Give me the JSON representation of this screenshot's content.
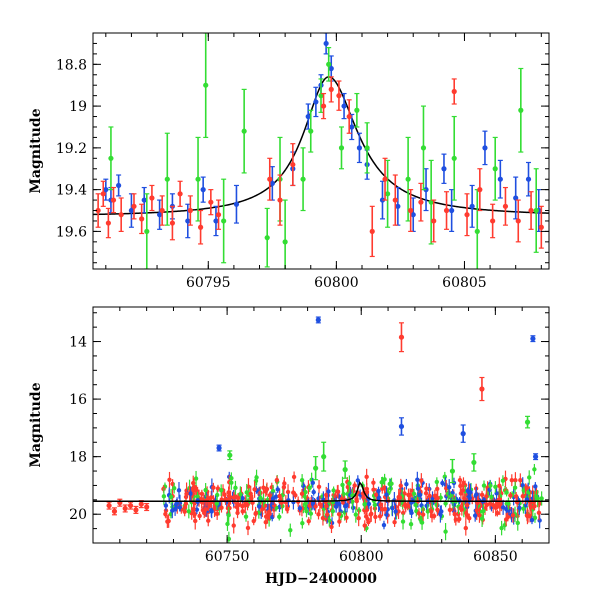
{
  "chart_data": [
    {
      "type": "scatter",
      "title": "",
      "xlabel": "",
      "ylabel": "Magnitude",
      "xlim": [
        60790.5,
        60808.3
      ],
      "ylim": [
        19.78,
        18.65
      ],
      "y_inverted": true,
      "grid": false,
      "x_ticks": [
        "60795",
        "60800",
        "60805"
      ],
      "y_ticks": [
        "18.8",
        "19",
        "19.2",
        "19.4",
        "19.6"
      ],
      "series": [
        {
          "color": "#1f4fe0",
          "points": [
            [
              60791.0,
              19.4,
              0.05
            ],
            [
              60791.2,
              19.45,
              0.06
            ],
            [
              60791.5,
              19.38,
              0.05
            ],
            [
              60792.0,
              19.5,
              0.08
            ],
            [
              60792.5,
              19.45,
              0.06
            ],
            [
              60793.1,
              19.52,
              0.07
            ],
            [
              60793.6,
              19.48,
              0.06
            ],
            [
              60794.2,
              19.55,
              0.08
            ],
            [
              60794.8,
              19.4,
              0.06
            ],
            [
              60795.3,
              19.55,
              0.07
            ],
            [
              60796.1,
              19.47,
              0.09
            ],
            [
              60797.5,
              19.37,
              0.08
            ],
            [
              60798.3,
              19.3,
              0.08
            ],
            [
              60798.9,
              19.05,
              0.06
            ],
            [
              60799.2,
              18.98,
              0.07
            ],
            [
              60799.4,
              18.9,
              0.05
            ],
            [
              60799.6,
              18.7,
              0.05
            ],
            [
              60799.8,
              18.82,
              0.06
            ],
            [
              60800.3,
              19.0,
              0.06
            ],
            [
              60800.6,
              19.1,
              0.06
            ],
            [
              60800.9,
              19.2,
              0.07
            ],
            [
              60801.2,
              19.28,
              0.07
            ],
            [
              60801.8,
              19.45,
              0.09
            ],
            [
              60802.4,
              19.48,
              0.09
            ],
            [
              60803.0,
              19.52,
              0.08
            ],
            [
              60803.5,
              19.4,
              0.1
            ],
            [
              60804.2,
              19.3,
              0.07
            ],
            [
              60804.5,
              19.5,
              0.1
            ],
            [
              60805.3,
              19.48,
              0.1
            ],
            [
              60805.8,
              19.2,
              0.08
            ],
            [
              60806.4,
              19.35,
              0.09
            ],
            [
              60807.0,
              19.44,
              0.1
            ],
            [
              60807.5,
              19.35,
              0.08
            ],
            [
              60807.9,
              19.5,
              0.1
            ]
          ]
        },
        {
          "color": "#33dd33",
          "points": [
            [
              60791.2,
              19.25,
              0.15
            ],
            [
              60792.6,
              19.6,
              0.18
            ],
            [
              60793.4,
              19.35,
              0.22
            ],
            [
              60794.6,
              19.35,
              0.2
            ],
            [
              60794.9,
              18.9,
              0.25
            ],
            [
              60795.6,
              19.55,
              0.2
            ],
            [
              60796.4,
              19.12,
              0.2
            ],
            [
              60797.3,
              19.63,
              0.14
            ],
            [
              60797.8,
              19.35,
              0.2
            ],
            [
              60798.0,
              19.65,
              0.2
            ],
            [
              60798.7,
              19.35,
              0.15
            ],
            [
              60799.0,
              19.12,
              0.1
            ],
            [
              60799.4,
              18.95,
              0.08
            ],
            [
              60799.7,
              18.8,
              0.08
            ],
            [
              60800.2,
              19.2,
              0.1
            ],
            [
              60800.8,
              19.02,
              0.08
            ],
            [
              60801.2,
              19.2,
              0.12
            ],
            [
              60802.0,
              19.42,
              0.16
            ],
            [
              60802.8,
              19.35,
              0.2
            ],
            [
              60803.4,
              19.2,
              0.2
            ],
            [
              60803.7,
              19.46,
              0.2
            ],
            [
              60804.6,
              19.25,
              0.2
            ],
            [
              60805.5,
              19.6,
              0.2
            ],
            [
              60806.2,
              19.3,
              0.15
            ],
            [
              60807.2,
              19.02,
              0.2
            ],
            [
              60807.8,
              19.5,
              0.2
            ]
          ]
        },
        {
          "color": "#ff3b2f",
          "points": [
            [
              60790.7,
              19.5,
              0.08
            ],
            [
              60790.9,
              19.42,
              0.06
            ],
            [
              60791.1,
              19.56,
              0.07
            ],
            [
              60791.3,
              19.45,
              0.06
            ],
            [
              60791.6,
              19.52,
              0.08
            ],
            [
              60792.1,
              19.48,
              0.06
            ],
            [
              60792.4,
              19.54,
              0.07
            ],
            [
              60792.8,
              19.44,
              0.06
            ],
            [
              60793.2,
              19.5,
              0.07
            ],
            [
              60793.6,
              19.56,
              0.08
            ],
            [
              60793.9,
              19.42,
              0.06
            ],
            [
              60794.3,
              19.5,
              0.07
            ],
            [
              60794.7,
              19.58,
              0.08
            ],
            [
              60795.1,
              19.46,
              0.06
            ],
            [
              60795.4,
              19.52,
              0.07
            ],
            [
              60797.4,
              19.35,
              0.1
            ],
            [
              60797.8,
              19.45,
              0.12
            ],
            [
              60798.3,
              19.28,
              0.1
            ],
            [
              60799.5,
              19.0,
              0.06
            ],
            [
              60799.8,
              18.92,
              0.06
            ],
            [
              60800.1,
              18.95,
              0.07
            ],
            [
              60800.5,
              19.05,
              0.08
            ],
            [
              60801.4,
              19.6,
              0.12
            ],
            [
              60801.9,
              19.35,
              0.1
            ],
            [
              60802.3,
              19.45,
              0.12
            ],
            [
              60802.9,
              19.5,
              0.1
            ],
            [
              60803.3,
              19.46,
              0.09
            ],
            [
              60803.8,
              19.55,
              0.1
            ],
            [
              60804.3,
              19.5,
              0.09
            ],
            [
              60804.6,
              18.93,
              0.06
            ],
            [
              60805.1,
              19.52,
              0.1
            ],
            [
              60805.6,
              19.4,
              0.1
            ],
            [
              60806.1,
              19.55,
              0.08
            ],
            [
              60806.6,
              19.48,
              0.09
            ],
            [
              60807.1,
              19.55,
              0.1
            ],
            [
              60807.6,
              19.5,
              0.09
            ],
            [
              60808.0,
              19.58,
              0.1
            ]
          ]
        }
      ],
      "model_curve": {
        "color": "#000000",
        "peak_x": 60799.7,
        "peak_mag": 18.86,
        "base_mag": 19.53,
        "rise_width": 1.2,
        "decay_width": 1.4
      }
    },
    {
      "type": "scatter",
      "title": "",
      "xlabel": "HJD−2400000",
      "ylabel": "Magnitude",
      "xlim": [
        60700,
        60870
      ],
      "ylim": [
        21.0,
        12.8
      ],
      "y_inverted": true,
      "grid": false,
      "x_ticks": [
        "60750",
        "60800",
        "60850"
      ],
      "y_ticks": [
        "14",
        "16",
        "18",
        "20"
      ],
      "series": [
        {
          "color": "#1f4fe0",
          "outliers": [
            [
              60784,
              13.25,
              0.1
            ],
            [
              60747,
              17.7,
              0.1
            ],
            [
              60815,
              16.95,
              0.3
            ],
            [
              60838,
              17.2,
              0.3
            ],
            [
              60864,
              13.9,
              0.1
            ],
            [
              60865,
              18.0,
              0.1
            ]
          ]
        },
        {
          "color": "#33dd33",
          "outliers": [
            [
              60751,
              17.95,
              0.15
            ],
            [
              60783,
              18.4,
              0.4
            ],
            [
              60786,
              18.0,
              0.5
            ],
            [
              60794,
              18.45,
              0.3
            ],
            [
              60834,
              18.5,
              0.4
            ],
            [
              60842,
              18.2,
              0.3
            ],
            [
              60862,
              16.8,
              0.2
            ]
          ]
        },
        {
          "color": "#ff3b2f",
          "outliers": [
            [
              60815,
              13.85,
              0.5
            ],
            [
              60845,
              15.65,
              0.4
            ]
          ]
        }
      ],
      "dense_band": {
        "x_range": [
          60726,
          60868
        ],
        "center_mag": 19.55,
        "spread": 0.35,
        "early_red_points": [
          [
            60706,
            19.7
          ],
          [
            60708,
            19.9
          ],
          [
            60710,
            19.6
          ],
          [
            60712,
            19.8
          ],
          [
            60714,
            19.7
          ],
          [
            60716,
            19.85
          ],
          [
            60718,
            19.65
          ],
          [
            60720,
            19.75
          ]
        ]
      },
      "model_curve": {
        "color": "#000000",
        "base_mag": 19.55
      }
    }
  ]
}
